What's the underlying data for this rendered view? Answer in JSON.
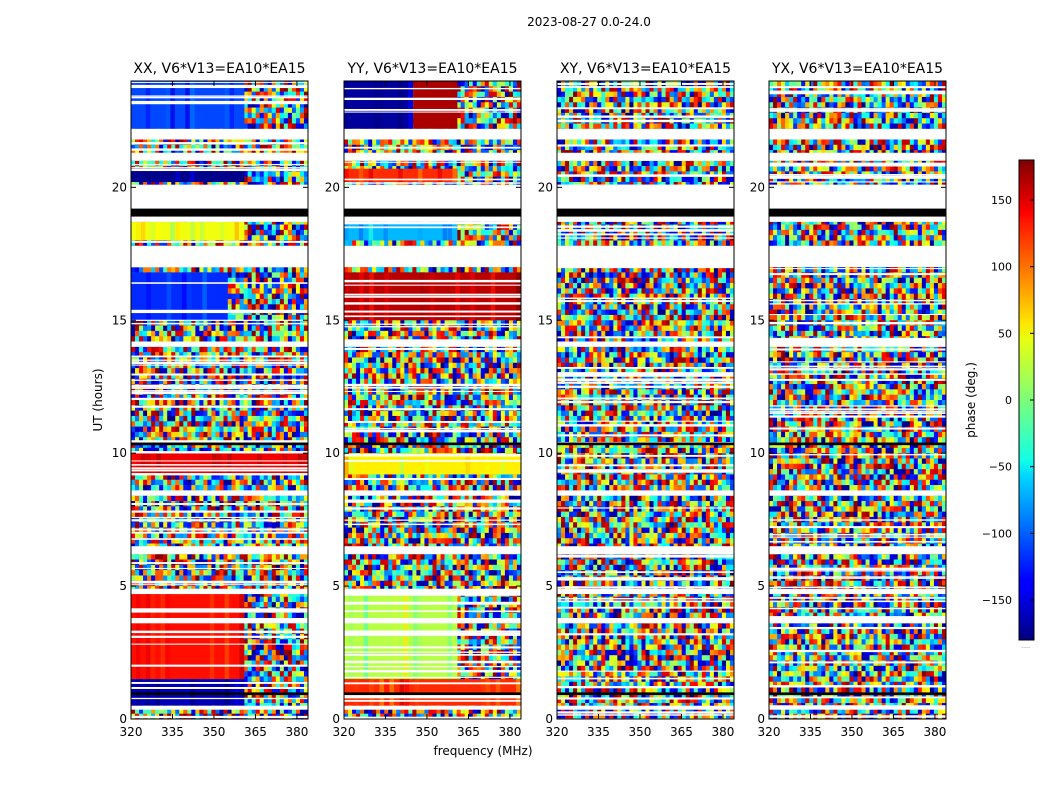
{
  "figure": {
    "suptitle": "2023-08-27 0.0-24.0",
    "xlabel": "frequency (MHz)",
    "ylabel": "UT (hours)"
  },
  "chart_data": {
    "type": "heatmap",
    "x": {
      "label": "frequency (MHz)",
      "range": [
        320,
        384
      ],
      "ticks": [
        320,
        335,
        350,
        365,
        380
      ]
    },
    "y": {
      "label": "UT (hours)",
      "range": [
        0,
        24
      ],
      "ticks": [
        0,
        5,
        10,
        15,
        20
      ]
    },
    "panels": [
      {
        "title": "XX, V6*V13=EA10*EA15",
        "pol": "XX"
      },
      {
        "title": "YY, V6*V13=EA10*EA15",
        "pol": "YY"
      },
      {
        "title": "XY, V6*V13=EA10*EA15",
        "pol": "XY"
      },
      {
        "title": "YX, V6*V13=EA10*EA15",
        "pol": "YX"
      }
    ],
    "colorbar": {
      "label": "phase (deg.)",
      "range": [
        -180,
        180
      ],
      "ticks": [
        150,
        100,
        50,
        0,
        -50,
        -100,
        -150
      ],
      "tick_labels": [
        "150",
        "100",
        "50",
        "0",
        "−50",
        "−100",
        "−150"
      ],
      "colormap": "jet",
      "footer": "....."
    },
    "blank_ut_bands": [
      [
        18.7,
        20.1
      ],
      [
        21.0,
        21.3
      ],
      [
        21.8,
        22.2
      ],
      [
        17.0,
        17.8
      ],
      [
        14.0,
        14.2
      ],
      [
        8.4,
        8.6
      ],
      [
        6.2,
        6.5
      ],
      [
        4.7,
        4.9
      ],
      [
        3.6,
        3.8
      ],
      [
        0.35,
        0.5
      ]
    ],
    "flag_ut_bands": [
      [
        18.9,
        19.2
      ],
      [
        10.3,
        10.4
      ],
      [
        0.9,
        1.0
      ]
    ],
    "coherent_segments": [
      {
        "pol": "XX",
        "ut": [
          22.2,
          24.0
        ],
        "f": [
          320,
          361
        ],
        "phase": -110
      },
      {
        "pol": "XX",
        "ut": [
          20.2,
          20.7
        ],
        "f": [
          320,
          361
        ],
        "phase": -175
      },
      {
        "pol": "XX",
        "ut": [
          18.0,
          18.7
        ],
        "f": [
          320,
          361
        ],
        "phase": 40
      },
      {
        "pol": "XX",
        "ut": [
          15.0,
          16.8
        ],
        "f": [
          320,
          355
        ],
        "phase": -120
      },
      {
        "pol": "XX",
        "ut": [
          9.2,
          10.0
        ],
        "f": [
          320,
          384
        ],
        "phase": 140
      },
      {
        "pol": "XX",
        "ut": [
          1.5,
          4.7
        ],
        "f": [
          320,
          361
        ],
        "phase": 130
      },
      {
        "pol": "XX",
        "ut": [
          0.5,
          1.5
        ],
        "f": [
          320,
          361
        ],
        "phase": -160
      },
      {
        "pol": "YY",
        "ut": [
          22.2,
          24.0
        ],
        "f": [
          320,
          345
        ],
        "phase": -170
      },
      {
        "pol": "YY",
        "ut": [
          22.2,
          24.0
        ],
        "f": [
          345,
          361
        ],
        "phase": 165
      },
      {
        "pol": "YY",
        "ut": [
          20.2,
          20.7
        ],
        "f": [
          320,
          361
        ],
        "phase": 120
      },
      {
        "pol": "YY",
        "ut": [
          18.0,
          18.7
        ],
        "f": [
          320,
          361
        ],
        "phase": -70
      },
      {
        "pol": "YY",
        "ut": [
          15.0,
          16.8
        ],
        "f": [
          320,
          384
        ],
        "phase": 160
      },
      {
        "pol": "YY",
        "ut": [
          9.2,
          10.0
        ],
        "f": [
          320,
          384
        ],
        "phase": 50
      },
      {
        "pol": "YY",
        "ut": [
          1.5,
          4.7
        ],
        "f": [
          320,
          361
        ],
        "phase": 20
      },
      {
        "pol": "YY",
        "ut": [
          0.5,
          1.5
        ],
        "f": [
          320,
          384
        ],
        "phase": 120
      }
    ]
  }
}
